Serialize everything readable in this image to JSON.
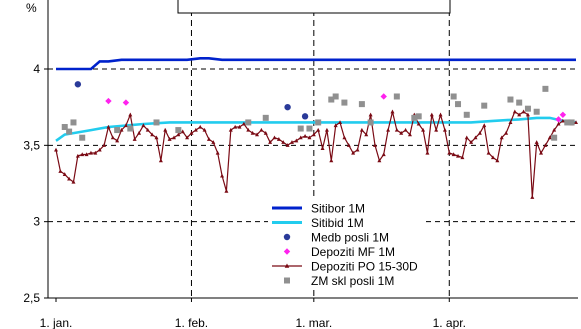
{
  "chart_data": {
    "type": "line",
    "unit_label": "%",
    "ylim": [
      2.5,
      4.2
    ],
    "y_ticks": [
      {
        "value": 4,
        "label": "4"
      },
      {
        "value": 3.5,
        "label": "3,5"
      },
      {
        "value": 3,
        "label": "3"
      },
      {
        "value": 2.5,
        "label": "2,5"
      }
    ],
    "x_ticks": [
      {
        "day": 0,
        "label": "1. jan."
      },
      {
        "day": 31,
        "label": "1. feb."
      },
      {
        "day": 59,
        "label": "1. mar."
      },
      {
        "day": 90,
        "label": "1. apr."
      }
    ],
    "xlim_days": [
      0,
      119
    ],
    "grid": {
      "vertical": "dashed",
      "horizontal": "dashed"
    },
    "legend_placement": "bottom-center",
    "series": [
      {
        "name": "Sitibor 1M",
        "style": "line",
        "color": "#0022cc",
        "points": [
          [
            0,
            4.0
          ],
          [
            5,
            4.0
          ],
          [
            8,
            4.0
          ],
          [
            10,
            4.05
          ],
          [
            12,
            4.05
          ],
          [
            15,
            4.06
          ],
          [
            20,
            4.06
          ],
          [
            25,
            4.06
          ],
          [
            30,
            4.06
          ],
          [
            33,
            4.07
          ],
          [
            35,
            4.07
          ],
          [
            38,
            4.06
          ],
          [
            45,
            4.06
          ],
          [
            55,
            4.06
          ],
          [
            65,
            4.06
          ],
          [
            75,
            4.06
          ],
          [
            85,
            4.06
          ],
          [
            95,
            4.06
          ],
          [
            105,
            4.06
          ],
          [
            119,
            4.06
          ]
        ]
      },
      {
        "name": "Sitibid 1M",
        "style": "line",
        "color": "#22ccee",
        "points": [
          [
            0,
            3.53
          ],
          [
            2,
            3.57
          ],
          [
            4,
            3.58
          ],
          [
            8,
            3.6
          ],
          [
            12,
            3.62
          ],
          [
            16,
            3.63
          ],
          [
            20,
            3.64
          ],
          [
            26,
            3.65
          ],
          [
            35,
            3.65
          ],
          [
            45,
            3.65
          ],
          [
            55,
            3.65
          ],
          [
            65,
            3.65
          ],
          [
            75,
            3.65
          ],
          [
            85,
            3.65
          ],
          [
            95,
            3.65
          ],
          [
            100,
            3.66
          ],
          [
            106,
            3.67
          ],
          [
            110,
            3.68
          ],
          [
            113,
            3.68
          ],
          [
            116,
            3.66
          ],
          [
            119,
            3.65
          ]
        ]
      },
      {
        "name": "Medb posli 1M",
        "style": "marker-circle",
        "color": "#2a3a99",
        "points": [
          [
            5,
            3.9
          ],
          [
            53,
            3.75
          ],
          [
            57,
            3.69
          ]
        ]
      },
      {
        "name": "Depoziti MF 1M",
        "style": "marker-diamond",
        "color": "#ff22ee",
        "points": [
          [
            12,
            3.79
          ],
          [
            16,
            3.78
          ],
          [
            75,
            3.82
          ],
          [
            115,
            3.67
          ],
          [
            116,
            3.7
          ]
        ]
      },
      {
        "name": "Depoziti PO 15-30D",
        "style": "line-marker",
        "color": "#7a0a14",
        "points": [
          [
            0,
            3.47
          ],
          [
            1,
            3.33
          ],
          [
            2,
            3.31
          ],
          [
            3,
            3.28
          ],
          [
            4,
            3.26
          ],
          [
            5,
            3.43
          ],
          [
            6,
            3.44
          ],
          [
            7,
            3.44
          ],
          [
            8,
            3.45
          ],
          [
            9,
            3.45
          ],
          [
            10,
            3.47
          ],
          [
            11,
            3.5
          ],
          [
            12,
            3.62
          ],
          [
            13,
            3.55
          ],
          [
            14,
            3.53
          ],
          [
            15,
            3.6
          ],
          [
            16,
            3.63
          ],
          [
            17,
            3.7
          ],
          [
            18,
            3.54
          ],
          [
            19,
            3.58
          ],
          [
            20,
            3.63
          ],
          [
            21,
            3.6
          ],
          [
            22,
            3.57
          ],
          [
            23,
            3.55
          ],
          [
            24,
            3.4
          ],
          [
            25,
            3.6
          ],
          [
            26,
            3.54
          ],
          [
            27,
            3.55
          ],
          [
            28,
            3.57
          ],
          [
            29,
            3.59
          ],
          [
            30,
            3.55
          ],
          [
            31,
            3.58
          ],
          [
            32,
            3.6
          ],
          [
            33,
            3.62
          ],
          [
            34,
            3.6
          ],
          [
            35,
            3.54
          ],
          [
            36,
            3.52
          ],
          [
            37,
            3.45
          ],
          [
            38,
            3.3
          ],
          [
            39,
            3.2
          ],
          [
            40,
            3.6
          ],
          [
            41,
            3.62
          ],
          [
            42,
            3.62
          ],
          [
            43,
            3.64
          ],
          [
            44,
            3.6
          ],
          [
            45,
            3.58
          ],
          [
            46,
            3.57
          ],
          [
            47,
            3.6
          ],
          [
            48,
            3.58
          ],
          [
            49,
            3.52
          ],
          [
            50,
            3.55
          ],
          [
            51,
            3.54
          ],
          [
            52,
            3.52
          ],
          [
            53,
            3.5
          ],
          [
            54,
            3.52
          ],
          [
            55,
            3.53
          ],
          [
            56,
            3.55
          ],
          [
            57,
            3.56
          ],
          [
            58,
            3.55
          ],
          [
            59,
            3.57
          ],
          [
            60,
            3.6
          ],
          [
            61,
            3.48
          ],
          [
            62,
            3.6
          ],
          [
            63,
            3.4
          ],
          [
            64,
            3.63
          ],
          [
            65,
            3.65
          ],
          [
            66,
            3.55
          ],
          [
            67,
            3.5
          ],
          [
            68,
            3.45
          ],
          [
            69,
            3.47
          ],
          [
            70,
            3.6
          ],
          [
            71,
            3.57
          ],
          [
            72,
            3.7
          ],
          [
            73,
            3.5
          ],
          [
            74,
            3.4
          ],
          [
            75,
            3.44
          ],
          [
            76,
            3.6
          ],
          [
            77,
            3.72
          ],
          [
            78,
            3.6
          ],
          [
            79,
            3.58
          ],
          [
            80,
            3.6
          ],
          [
            81,
            3.57
          ],
          [
            82,
            3.7
          ],
          [
            83,
            3.64
          ],
          [
            84,
            3.6
          ],
          [
            85,
            3.45
          ],
          [
            86,
            3.7
          ],
          [
            87,
            3.6
          ],
          [
            88,
            3.7
          ],
          [
            89,
            3.6
          ],
          [
            90,
            3.45
          ],
          [
            91,
            3.44
          ],
          [
            92,
            3.43
          ],
          [
            93,
            3.42
          ],
          [
            94,
            3.55
          ],
          [
            95,
            3.52
          ],
          [
            96,
            3.55
          ],
          [
            97,
            3.58
          ],
          [
            98,
            3.63
          ],
          [
            99,
            3.45
          ],
          [
            100,
            3.42
          ],
          [
            101,
            3.4
          ],
          [
            102,
            3.55
          ],
          [
            103,
            3.58
          ],
          [
            104,
            3.65
          ],
          [
            105,
            3.72
          ],
          [
            106,
            3.7
          ],
          [
            107,
            3.72
          ],
          [
            108,
            3.7
          ],
          [
            109,
            3.16
          ],
          [
            110,
            3.52
          ],
          [
            111,
            3.45
          ],
          [
            112,
            3.5
          ],
          [
            113,
            3.55
          ],
          [
            114,
            3.6
          ],
          [
            115,
            3.64
          ],
          [
            116,
            3.66
          ],
          [
            117,
            3.65
          ],
          [
            118,
            3.64
          ],
          [
            119,
            3.65
          ]
        ]
      },
      {
        "name": "ZM skl posli 1M",
        "style": "marker-square",
        "color": "#909090",
        "points": [
          [
            2,
            3.62
          ],
          [
            3,
            3.59
          ],
          [
            4,
            3.65
          ],
          [
            6,
            3.55
          ],
          [
            14,
            3.6
          ],
          [
            17,
            3.61
          ],
          [
            23,
            3.65
          ],
          [
            28,
            3.6
          ],
          [
            44,
            3.65
          ],
          [
            48,
            3.68
          ],
          [
            56,
            3.61
          ],
          [
            58,
            3.61
          ],
          [
            60,
            3.65
          ],
          [
            63,
            3.8
          ],
          [
            64,
            3.82
          ],
          [
            66,
            3.78
          ],
          [
            70,
            3.77
          ],
          [
            72,
            3.65
          ],
          [
            78,
            3.82
          ],
          [
            82,
            3.68
          ],
          [
            83,
            3.69
          ],
          [
            91,
            3.82
          ],
          [
            92,
            3.77
          ],
          [
            94,
            3.7
          ],
          [
            98,
            3.76
          ],
          [
            104,
            3.8
          ],
          [
            106,
            3.78
          ],
          [
            108,
            3.74
          ],
          [
            110,
            3.72
          ],
          [
            112,
            3.87
          ],
          [
            114,
            3.55
          ],
          [
            117,
            3.65
          ],
          [
            118,
            3.65
          ]
        ]
      }
    ]
  }
}
